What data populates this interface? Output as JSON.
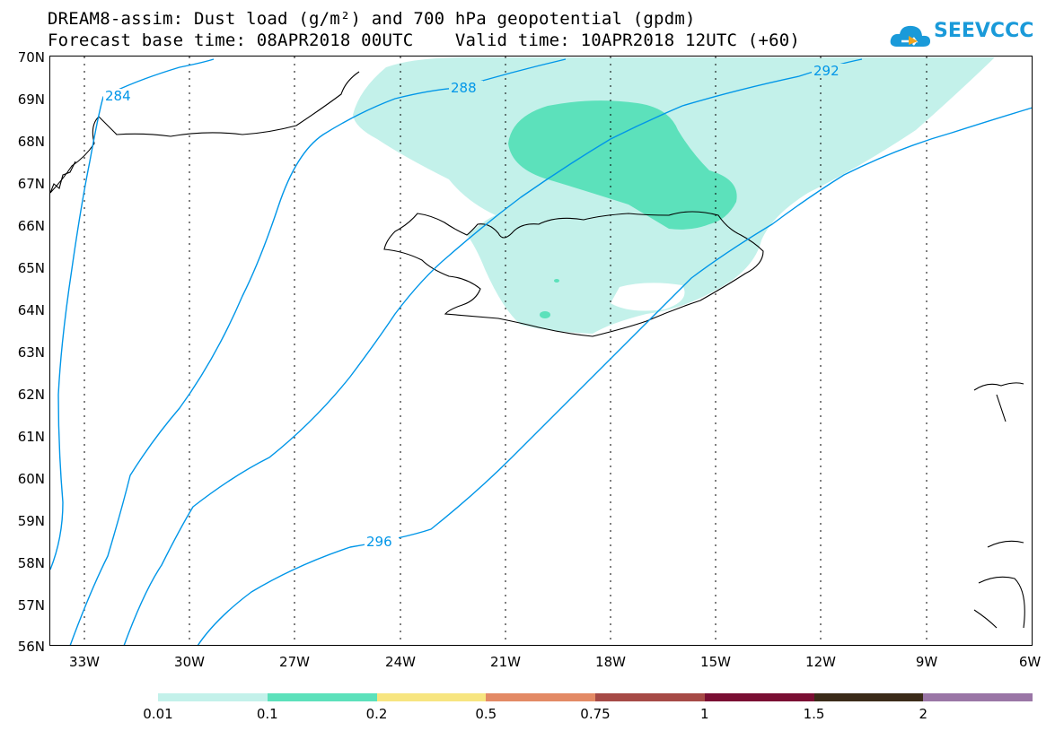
{
  "title": {
    "line1": "DREAM8-assim: Dust load (g/m²) and 700 hPa geopotential (gpdm)",
    "line2": "Forecast base time: 08APR2018 00UTC    Valid time: 10APR2018 12UTC (+60)"
  },
  "logo": {
    "text": "SEEVCCC",
    "icon": "cloud-icon",
    "color": "#1a9ad9"
  },
  "axes": {
    "latitudes": [
      "70N",
      "69N",
      "68N",
      "67N",
      "66N",
      "65N",
      "64N",
      "63N",
      "62N",
      "61N",
      "60N",
      "59N",
      "58N",
      "57N",
      "56N"
    ],
    "longitudes": [
      "33W",
      "30W",
      "27W",
      "24W",
      "21W",
      "18W",
      "15W",
      "12W",
      "9W",
      "6W"
    ]
  },
  "contour_labels": [
    "284",
    "288",
    "292",
    "296"
  ],
  "colorbar": {
    "colors": [
      "#c3f1ea",
      "#5ce1bb",
      "#f7e580",
      "#e38a65",
      "#a64a46",
      "#7a0f33",
      "#3b2b19",
      "#9a76a6"
    ],
    "labels": [
      "0.01",
      "0.1",
      "0.2",
      "0.5",
      "0.75",
      "1",
      "1.5",
      "2"
    ]
  },
  "colors": {
    "dust_light": "#c3f1ea",
    "dust_medium": "#5ce1bb",
    "contour": "#0096e8",
    "coast": "#000000"
  }
}
